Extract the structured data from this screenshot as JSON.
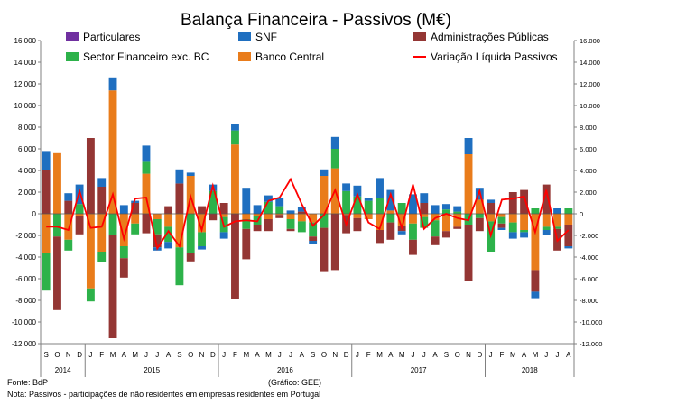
{
  "chart_data": {
    "type": "bar",
    "stacked": true,
    "title": "Balança Financeira - Passivos (M€)",
    "ylim": [
      -12000,
      16000
    ],
    "y_ticks": [
      "16.000",
      "14.000",
      "12.000",
      "10.000",
      "8.000",
      "6.000",
      "4.000",
      "2.000",
      "0",
      "-2.000",
      "-4.000",
      "-6.000",
      "-8.000",
      "-10.000",
      "-12.000"
    ],
    "y_ticks_right": [
      "16.000",
      "14.000",
      "12.000",
      "10.000",
      "8.000",
      "6.000",
      "4.000",
      "2.000",
      "0",
      "-2.000",
      "-4.000",
      "-6.000",
      "-8.000",
      "-10.000",
      "-12.000"
    ],
    "months": [
      "S",
      "O",
      "N",
      "D",
      "J",
      "F",
      "M",
      "A",
      "M",
      "J",
      "J",
      "A",
      "S",
      "O",
      "N",
      "D",
      "J",
      "F",
      "M",
      "A",
      "M",
      "J",
      "J",
      "A",
      "S",
      "O",
      "N",
      "D",
      "J",
      "F",
      "M",
      "A",
      "M",
      "J",
      "J",
      "A",
      "S",
      "O",
      "N",
      "D",
      "J",
      "F",
      "M",
      "A",
      "M",
      "J",
      "J",
      "A"
    ],
    "years": [
      {
        "label": "2014",
        "start": 0,
        "count": 4
      },
      {
        "label": "2015",
        "start": 4,
        "count": 12
      },
      {
        "label": "2016",
        "start": 16,
        "count": 12
      },
      {
        "label": "2017",
        "start": 28,
        "count": 12
      },
      {
        "label": "2018",
        "start": 40,
        "count": 8
      }
    ],
    "colors": {
      "Particulares": "#7030a0",
      "SNF": "#1f6fc0",
      "Administrações Públicas": "#943634",
      "Sector Financeiro exc. BC": "#2db24a",
      "Banco Central": "#e97c1b",
      "Variação Líquida Passivos": "#ff0000"
    },
    "legend": [
      "Particulares",
      "SNF",
      "Administrações Públicas",
      "Sector Financeiro exc. BC",
      "Banco Central",
      "Variação Líquida Passivos"
    ],
    "series": [
      {
        "name": "Particulares",
        "values": [
          0,
          0,
          0,
          0,
          0,
          0,
          0,
          0,
          0,
          0,
          0,
          0,
          0,
          0,
          0,
          0,
          0,
          0,
          0,
          0,
          0,
          0,
          0,
          0,
          0,
          0,
          0,
          0,
          0,
          0,
          0,
          0,
          0,
          0,
          0,
          0,
          0,
          0,
          0,
          0,
          0,
          0,
          0,
          0,
          0,
          0,
          0,
          0
        ]
      },
      {
        "name": "SNF",
        "values": [
          1800,
          0,
          700,
          1800,
          0,
          800,
          1200,
          800,
          200,
          1500,
          -300,
          -600,
          1300,
          300,
          -300,
          600,
          -600,
          600,
          2400,
          800,
          600,
          800,
          300,
          400,
          -300,
          600,
          1100,
          700,
          1000,
          300,
          1800,
          1900,
          -300,
          1800,
          900,
          800,
          500,
          500,
          1500,
          1100,
          300,
          -200,
          -600,
          -500,
          -600,
          -500,
          500,
          -200
        ]
      },
      {
        "name": "Administrações Públicas",
        "values": [
          4000,
          -6800,
          1200,
          -1700,
          7000,
          2500,
          -9500,
          -1800,
          1000,
          -1800,
          -1200,
          700,
          2800,
          -800,
          700,
          -600,
          1000,
          -7900,
          -2800,
          -600,
          -1100,
          -300,
          -200,
          200,
          -400,
          -4000,
          -5200,
          -1700,
          -1200,
          0,
          -1200,
          -1600,
          -500,
          -1400,
          1000,
          -800,
          -600,
          -200,
          -5200,
          -1200,
          1000,
          -400,
          2000,
          2200,
          -2000,
          2700,
          -2000,
          -2000
        ]
      },
      {
        "name": "Sector Financeiro exc. BC",
        "values": [
          -3500,
          -2100,
          -1000,
          900,
          -1200,
          -1000,
          -2000,
          -1100,
          -1000,
          1100,
          -1400,
          -1400,
          -3500,
          -3600,
          -1300,
          2100,
          -1400,
          1300,
          -900,
          -800,
          1100,
          700,
          -900,
          -1000,
          -1300,
          -1300,
          1800,
          2100,
          1600,
          1200,
          1500,
          -800,
          1000,
          -1500,
          -1000,
          -1500,
          400,
          200,
          -1000,
          -400,
          -2800,
          -600,
          -900,
          -200,
          500,
          -300,
          -200,
          500
        ]
      },
      {
        "name": "Banco Central",
        "values": [
          -3600,
          5600,
          -2400,
          -200,
          -6900,
          -3500,
          11400,
          -3000,
          -900,
          3700,
          -500,
          -1200,
          -3100,
          3500,
          -1700,
          0,
          -300,
          6400,
          -500,
          -200,
          -500,
          -100,
          -500,
          -700,
          -800,
          3500,
          4200,
          -100,
          -400,
          -500,
          -1500,
          300,
          -1100,
          -900,
          -300,
          -600,
          -1600,
          -1200,
          5500,
          1300,
          -700,
          -300,
          -800,
          -1500,
          -5200,
          -1200,
          -1200,
          -1000
        ]
      }
    ],
    "line_values": [
      -1200,
      -1200,
      -1500,
      2100,
      -1300,
      -1200,
      1800,
      -2300,
      1400,
      1500,
      -3200,
      -1600,
      -3000,
      1600,
      -1500,
      2600,
      -1200,
      -700,
      -600,
      -700,
      1200,
      1500,
      3200,
      900,
      -1100,
      -100,
      2200,
      -1000,
      1800,
      -800,
      -1400,
      1800,
      -1300,
      2700,
      -1400,
      -400,
      0,
      -400,
      -600,
      2100,
      -2000,
      1300,
      1400,
      1600,
      -1700,
      2200,
      -2500,
      -1500
    ]
  },
  "footer": {
    "source": "Fonte: BdP",
    "credit": "(Gráfico: GEE)",
    "note": "Nota: Passivos - participações de não residentes em empresas residentes em Portugal"
  }
}
